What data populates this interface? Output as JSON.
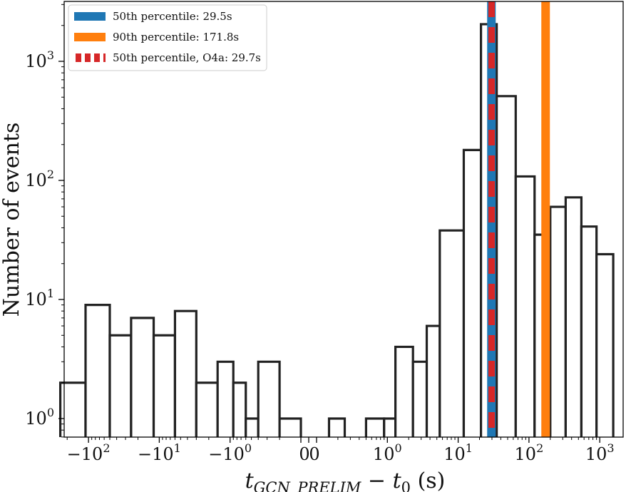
{
  "chart_data": {
    "type": "bar",
    "subtype": "histogram",
    "x_scale": "symlog",
    "y_scale": "log",
    "ylabel": "Number of events",
    "xlabel": "t_GCN_PRELIM − t_0 (s)",
    "x_ticks": [
      "−10^2",
      "−10^1",
      "−10^0",
      "0",
      "0",
      "10^0",
      "10^1",
      "10^2",
      "10^3"
    ],
    "y_ticks": [
      "10^0",
      "10^1",
      "10^2",
      "10^3"
    ],
    "ylim": [
      0.55,
      2800
    ],
    "bins": [
      {
        "x0": -250,
        "x1": -110,
        "value": 2
      },
      {
        "x0": -110,
        "x1": -50,
        "value": 9
      },
      {
        "x0": -50,
        "x1": -25,
        "value": 5
      },
      {
        "x0": -25,
        "x1": -12,
        "value": 7
      },
      {
        "x0": -12,
        "x1": -6,
        "value": 5
      },
      {
        "x0": -6,
        "x1": -3,
        "value": 8
      },
      {
        "x0": -3,
        "x1": -1.5,
        "value": 2
      },
      {
        "x0": -1.5,
        "x1": -0.9,
        "value": 3
      },
      {
        "x0": -0.9,
        "x1": -0.6,
        "value": 2
      },
      {
        "x0": -0.6,
        "x1": -0.4,
        "value": 1
      },
      {
        "x0": -0.4,
        "x1": -0.2,
        "value": 3
      },
      {
        "x0": -0.2,
        "x1": -0.1,
        "value": 1
      },
      {
        "x0": 0.15,
        "x1": 0.25,
        "value": 1
      },
      {
        "x0": 0.5,
        "x1": 0.9,
        "value": 1
      },
      {
        "x0": 0.9,
        "x1": 1.3,
        "value": 1
      },
      {
        "x0": 1.3,
        "x1": 2.3,
        "value": 4
      },
      {
        "x0": 2.3,
        "x1": 3.6,
        "value": 3
      },
      {
        "x0": 3.6,
        "x1": 5.5,
        "value": 6
      },
      {
        "x0": 5.5,
        "x1": 12,
        "value": 38
      },
      {
        "x0": 12,
        "x1": 21,
        "value": 180
      },
      {
        "x0": 21,
        "x1": 35,
        "value": 2050
      },
      {
        "x0": 35,
        "x1": 65,
        "value": 510
      },
      {
        "x0": 65,
        "x1": 120,
        "value": 108
      },
      {
        "x0": 120,
        "x1": 200,
        "value": 35
      },
      {
        "x0": 200,
        "x1": 330,
        "value": 60
      },
      {
        "x0": 330,
        "x1": 550,
        "value": 72
      },
      {
        "x0": 550,
        "x1": 900,
        "value": 41
      },
      {
        "x0": 900,
        "x1": 1550,
        "value": 24
      }
    ],
    "vlines": [
      {
        "label": "50th percentile: 29.5s",
        "x": 29.5,
        "color": "#1f77b4",
        "style": "solid"
      },
      {
        "label": "90th percentile: 171.8s",
        "x": 171.8,
        "color": "#ff7f0e",
        "style": "solid"
      },
      {
        "label": "50th percentile, O4a: 29.7s",
        "x": 29.7,
        "color": "#d62728",
        "style": "dashed"
      }
    ],
    "legend": {
      "placement": "top-left"
    }
  }
}
